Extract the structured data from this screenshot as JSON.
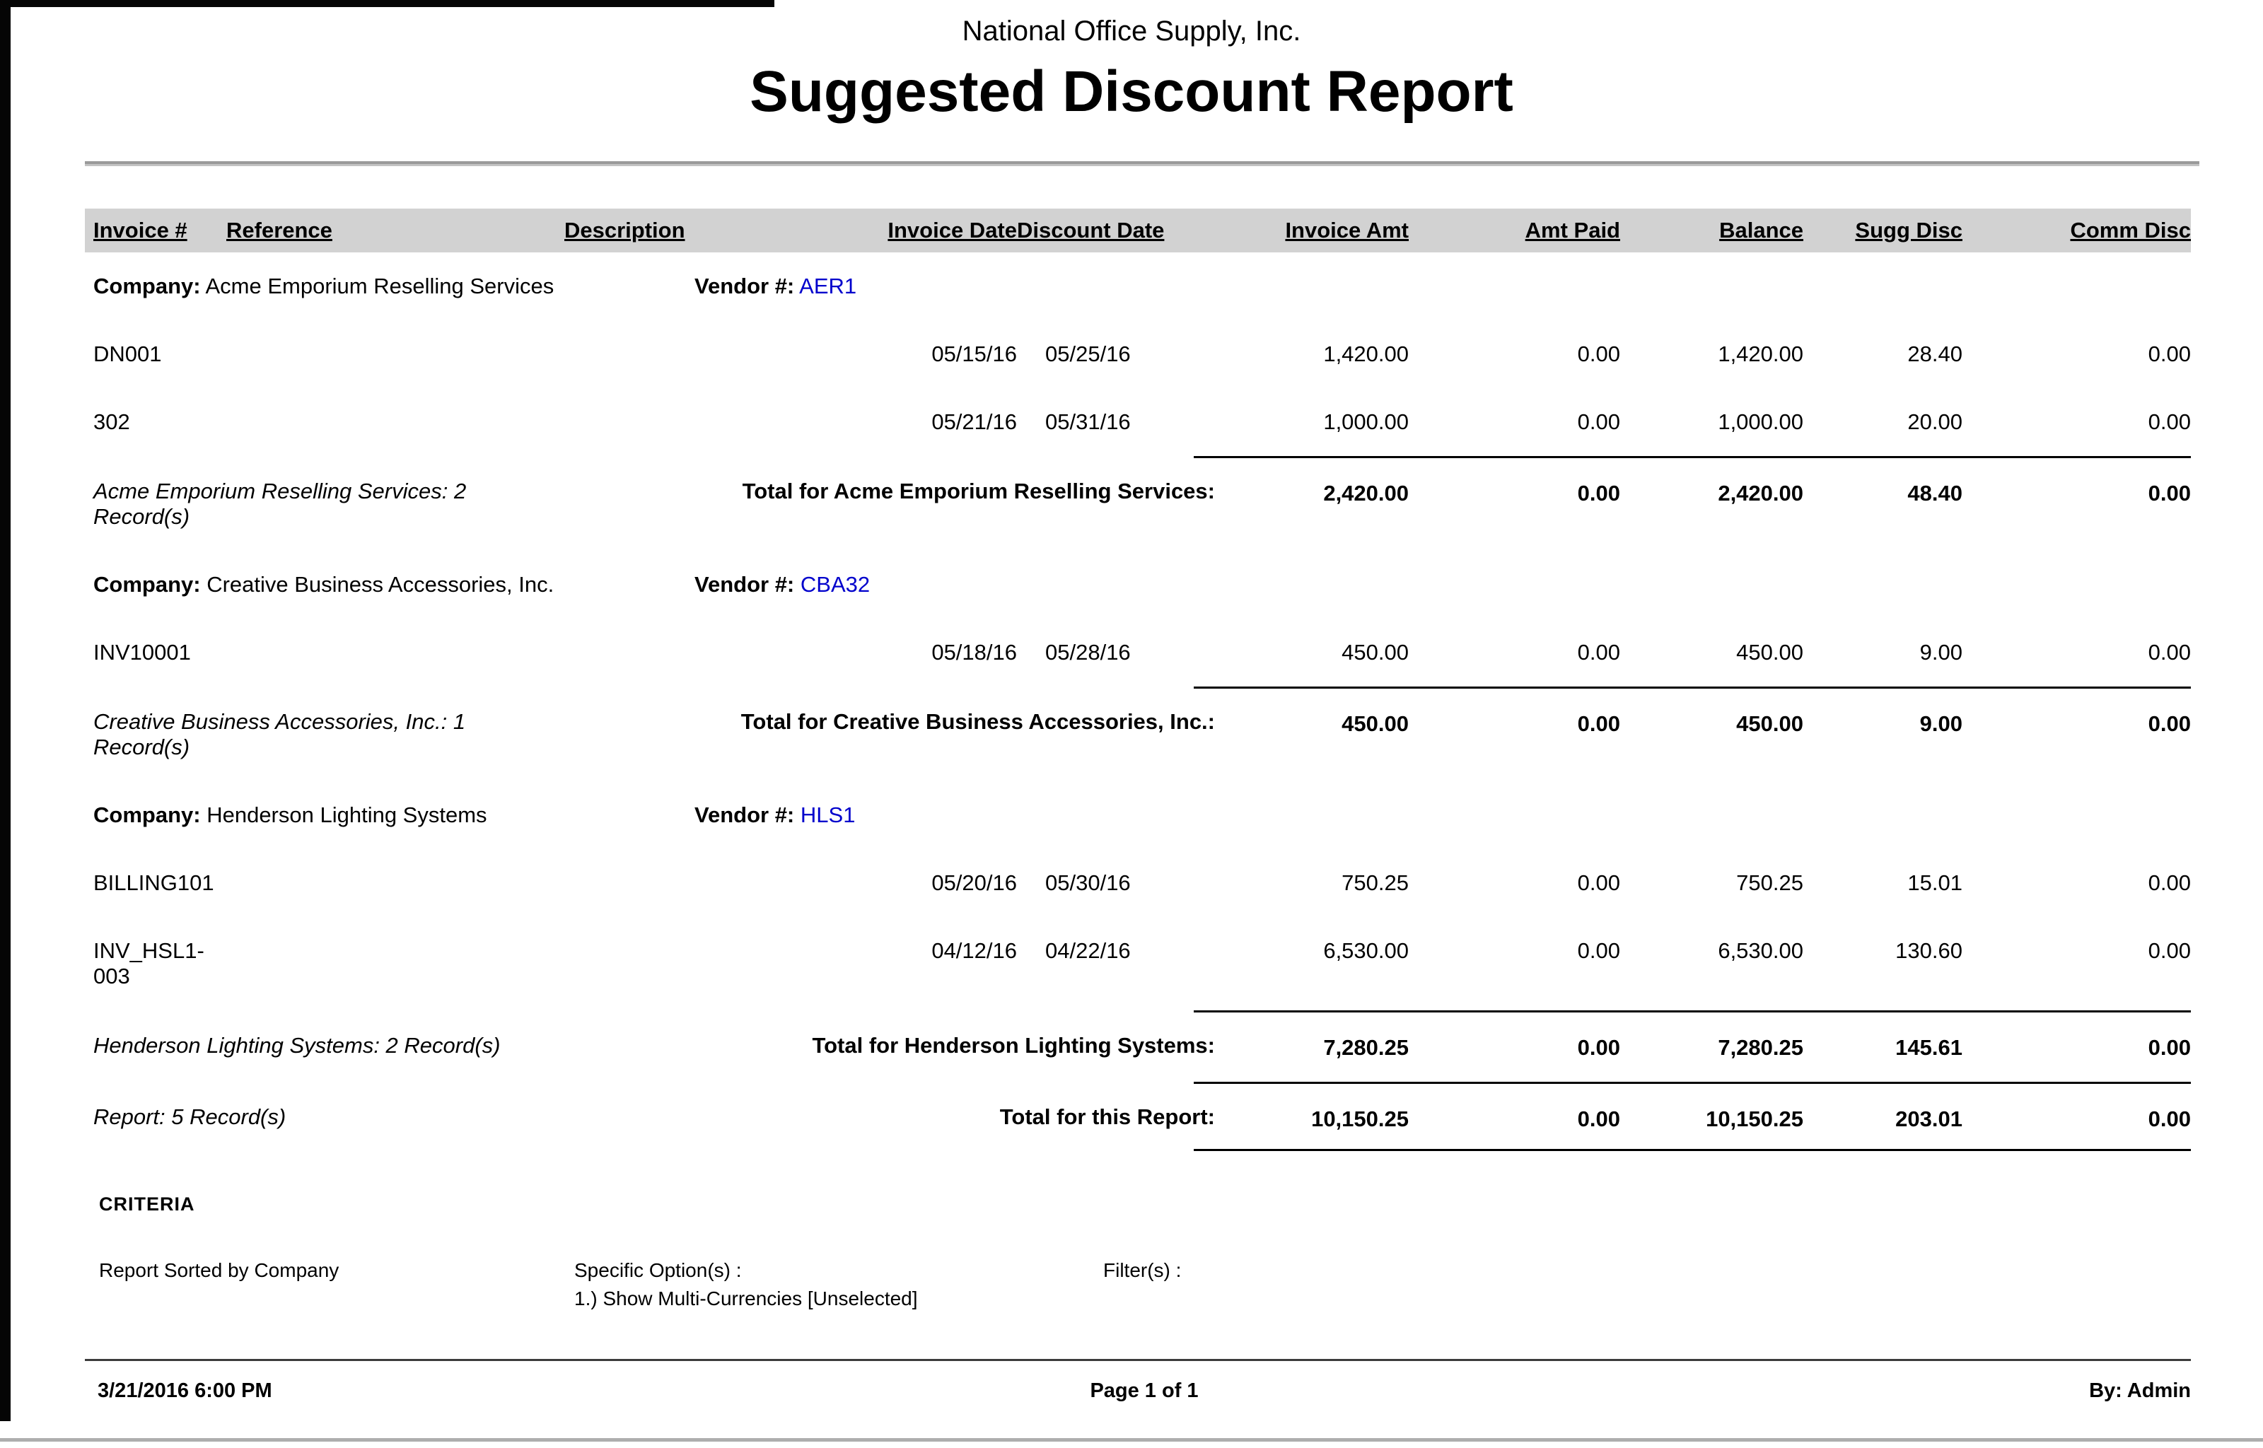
{
  "report": {
    "header": {
      "company_name": "National Office Supply, Inc.",
      "title": "Suggested Discount Report"
    },
    "columns": [
      "Invoice #",
      "Reference",
      "Description",
      "Invoice Date",
      "Discount Date",
      "Invoice Amt",
      "Amt Paid",
      "Balance",
      "Sugg Disc",
      "Comm Disc"
    ],
    "labels": {
      "company": "Company:",
      "vendor": "Vendor #:"
    },
    "groups": [
      {
        "company": "Acme Emporium Reselling Services",
        "vendor": "AER1",
        "rows": [
          {
            "invoice_num": "DN001",
            "reference": "",
            "description": "",
            "invoice_date": "05/15/16",
            "discount_date": "05/25/16",
            "invoice_amt": "1,420.00",
            "amt_paid": "0.00",
            "balance": "1,420.00",
            "sugg_disc": "28.40",
            "comm_disc": "0.00"
          },
          {
            "invoice_num": "302",
            "reference": "",
            "description": "",
            "invoice_date": "05/21/16",
            "discount_date": "05/31/16",
            "invoice_amt": "1,000.00",
            "amt_paid": "0.00",
            "balance": "1,000.00",
            "sugg_disc": "20.00",
            "comm_disc": "0.00"
          }
        ],
        "summary": {
          "records": "Acme Emporium Reselling Services: 2 Record(s)",
          "label": "Total for Acme Emporium Reselling Services:",
          "invoice_amt": "2,420.00",
          "amt_paid": "0.00",
          "balance": "2,420.00",
          "sugg_disc": "48.40",
          "comm_disc": "0.00"
        }
      },
      {
        "company": "Creative Business Accessories, Inc.",
        "vendor": "CBA32",
        "rows": [
          {
            "invoice_num": "INV10001",
            "reference": "",
            "description": "",
            "invoice_date": "05/18/16",
            "discount_date": "05/28/16",
            "invoice_amt": "450.00",
            "amt_paid": "0.00",
            "balance": "450.00",
            "sugg_disc": "9.00",
            "comm_disc": "0.00"
          }
        ],
        "summary": {
          "records": "Creative Business Accessories, Inc.: 1 Record(s)",
          "label": "Total for Creative Business Accessories, Inc.:",
          "invoice_amt": "450.00",
          "amt_paid": "0.00",
          "balance": "450.00",
          "sugg_disc": "9.00",
          "comm_disc": "0.00"
        }
      },
      {
        "company": "Henderson Lighting Systems",
        "vendor": "HLS1",
        "rows": [
          {
            "invoice_num": "BILLING101",
            "reference": "",
            "description": "",
            "invoice_date": "05/20/16",
            "discount_date": "05/30/16",
            "invoice_amt": "750.25",
            "amt_paid": "0.00",
            "balance": "750.25",
            "sugg_disc": "15.01",
            "comm_disc": "0.00"
          },
          {
            "invoice_num": "INV_HSL1-003",
            "reference": "",
            "description": "",
            "invoice_date": "04/12/16",
            "discount_date": "04/22/16",
            "invoice_amt": "6,530.00",
            "amt_paid": "0.00",
            "balance": "6,530.00",
            "sugg_disc": "130.60",
            "comm_disc": "0.00"
          }
        ],
        "summary": {
          "records": "Henderson Lighting Systems: 2 Record(s)",
          "label": "Total for Henderson Lighting Systems:",
          "invoice_amt": "7,280.25",
          "amt_paid": "0.00",
          "balance": "7,280.25",
          "sugg_disc": "145.61",
          "comm_disc": "0.00"
        }
      }
    ],
    "report_total": {
      "records": "Report: 5 Record(s)",
      "label": "Total for this Report:",
      "invoice_amt": "10,150.25",
      "amt_paid": "0.00",
      "balance": "10,150.25",
      "sugg_disc": "203.01",
      "comm_disc": "0.00"
    },
    "criteria": {
      "heading": "CRITERIA",
      "sorted_by": "Report Sorted by Company",
      "options_label": "Specific Option(s) :",
      "option_1": "1.) Show Multi-Currencies [Unselected]",
      "filters_label": "Filter(s) :"
    },
    "footer": {
      "generated": "3/21/2016 6:00 PM",
      "page": "Page 1 of 1",
      "by": "By: Admin"
    },
    "colors": {
      "vendor_link": "#0000cc",
      "header_bg": "#d2d2d2"
    }
  }
}
